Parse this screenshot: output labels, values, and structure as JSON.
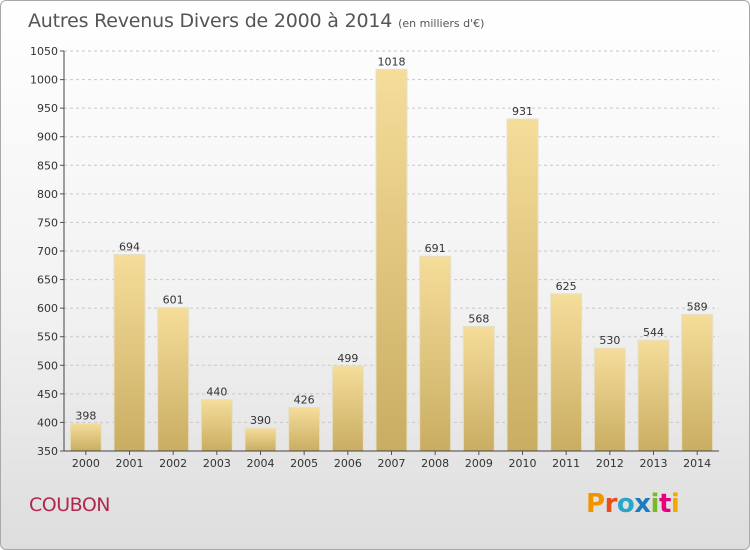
{
  "header": {
    "title": "Autres Revenus Divers de 2000 à 2014",
    "unit": "(en milliers d'€)"
  },
  "footer": {
    "place": "COUBON",
    "brand": "Proxiti"
  },
  "colors": {
    "bar_light": "#f5dd9a",
    "bar_dark": "#c9ad62",
    "place_text": "#b0284f"
  },
  "chart_data": {
    "type": "bar",
    "title": "Autres Revenus Divers de 2000 à 2014",
    "subtitle": "(en milliers d'€)",
    "categories": [
      "2000",
      "2001",
      "2002",
      "2003",
      "2004",
      "2005",
      "2006",
      "2007",
      "2008",
      "2009",
      "2010",
      "2011",
      "2012",
      "2013",
      "2014"
    ],
    "values": [
      398,
      694,
      601,
      440,
      390,
      426,
      499,
      1018,
      691,
      568,
      931,
      625,
      530,
      544,
      589
    ],
    "ylim": [
      350,
      1050
    ],
    "yticks": [
      350,
      400,
      450,
      500,
      550,
      600,
      650,
      700,
      750,
      800,
      850,
      900,
      950,
      1000,
      1050
    ],
    "grid": "horizontal-dashed",
    "data_labels": true
  }
}
